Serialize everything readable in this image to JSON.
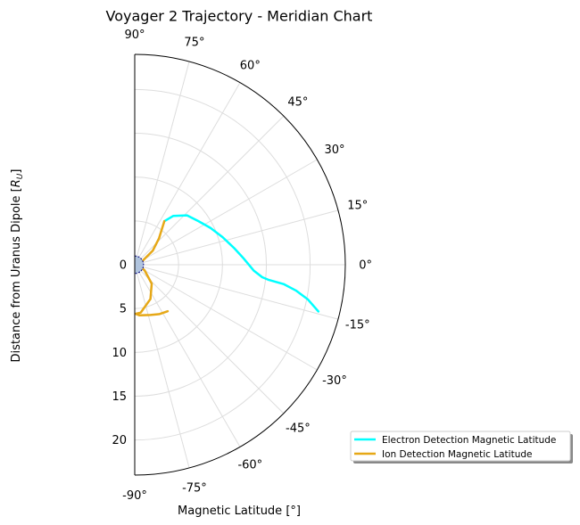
{
  "chart_data": {
    "type": "line",
    "projection": "polar-meridian-half",
    "title": "Voyager 2 Trajectory - Meridian Chart",
    "xlabel": "Magnetic Latitude [°]",
    "ylabel": "Distance from Uranus Dipole [R_U]",
    "ylabel_main": "Distance from Uranus Dipole [",
    "ylabel_sym": "R",
    "ylabel_sub": "U",
    "ylabel_end": "]",
    "angle_range_deg": [
      -90,
      90
    ],
    "radial_range": [
      0,
      24
    ],
    "angle_ticks": [
      {
        "deg": 90,
        "label": "90°"
      },
      {
        "deg": 75,
        "label": "75°"
      },
      {
        "deg": 60,
        "label": "60°"
      },
      {
        "deg": 45,
        "label": "45°"
      },
      {
        "deg": 30,
        "label": "30°"
      },
      {
        "deg": 15,
        "label": "15°"
      },
      {
        "deg": 0,
        "label": "0°"
      },
      {
        "deg": -15,
        "label": "-15°"
      },
      {
        "deg": -30,
        "label": "-30°"
      },
      {
        "deg": -45,
        "label": "-45°"
      },
      {
        "deg": -60,
        "label": "-60°"
      },
      {
        "deg": -75,
        "label": "-75°"
      },
      {
        "deg": -90,
        "label": "-90°"
      }
    ],
    "radial_ticks": [
      {
        "value": 0,
        "label": "0"
      },
      {
        "value": 5,
        "label": "5"
      },
      {
        "value": 10,
        "label": "10"
      },
      {
        "value": 15,
        "label": "15"
      },
      {
        "value": 20,
        "label": "20"
      }
    ],
    "grid": true,
    "planet": {
      "radius": 1.0,
      "color": "#b0c4de",
      "edge_color": "#000080"
    },
    "legend_position": "lower-right",
    "series": [
      {
        "name": "Electron Detection Magnetic Latitude",
        "color": "#00ffff",
        "points": [
          {
            "lat": -14.3,
            "r": 21.6
          },
          {
            "lat": -11.3,
            "r": 20.1
          },
          {
            "lat": -9.1,
            "r": 18.6
          },
          {
            "lat": -7.4,
            "r": 17.1
          },
          {
            "lat": -6.4,
            "r": 15.3
          },
          {
            "lat": -5.6,
            "r": 14.6
          },
          {
            "lat": -2.9,
            "r": 13.6
          },
          {
            "lat": 3.5,
            "r": 12.4
          },
          {
            "lat": 9.4,
            "r": 11.5
          },
          {
            "lat": 17.4,
            "r": 10.5
          },
          {
            "lat": 25.9,
            "r": 9.6
          },
          {
            "lat": 34.4,
            "r": 8.8
          },
          {
            "lat": 43.4,
            "r": 8.2
          },
          {
            "lat": 51.7,
            "r": 7.1
          },
          {
            "lat": 55.8,
            "r": 6.0
          }
        ]
      },
      {
        "name": "Ion Detection Magnetic Latitude",
        "color": "#e6a817",
        "points": [
          {
            "lat": 55.8,
            "r": 6.0
          },
          {
            "lat": 47.5,
            "r": 4.1
          },
          {
            "lat": 37.9,
            "r": 2.6
          },
          {
            "lat": 24.4,
            "r": 0.9
          },
          {
            "lat": 0.0,
            "r": 0.4
          },
          {
            "lat": -29.9,
            "r": 1.3
          },
          {
            "lat": -48.1,
            "r": 2.9
          },
          {
            "lat": -65.4,
            "r": 4.3
          },
          {
            "lat": -82.8,
            "r": 5.5
          },
          {
            "lat": -88.9,
            "r": 5.6
          },
          {
            "lat": -84.6,
            "r": 5.8
          },
          {
            "lat": -72.7,
            "r": 6.0
          },
          {
            "lat": -63.3,
            "r": 6.3
          },
          {
            "lat": -54.7,
            "r": 6.5
          }
        ]
      }
    ]
  }
}
